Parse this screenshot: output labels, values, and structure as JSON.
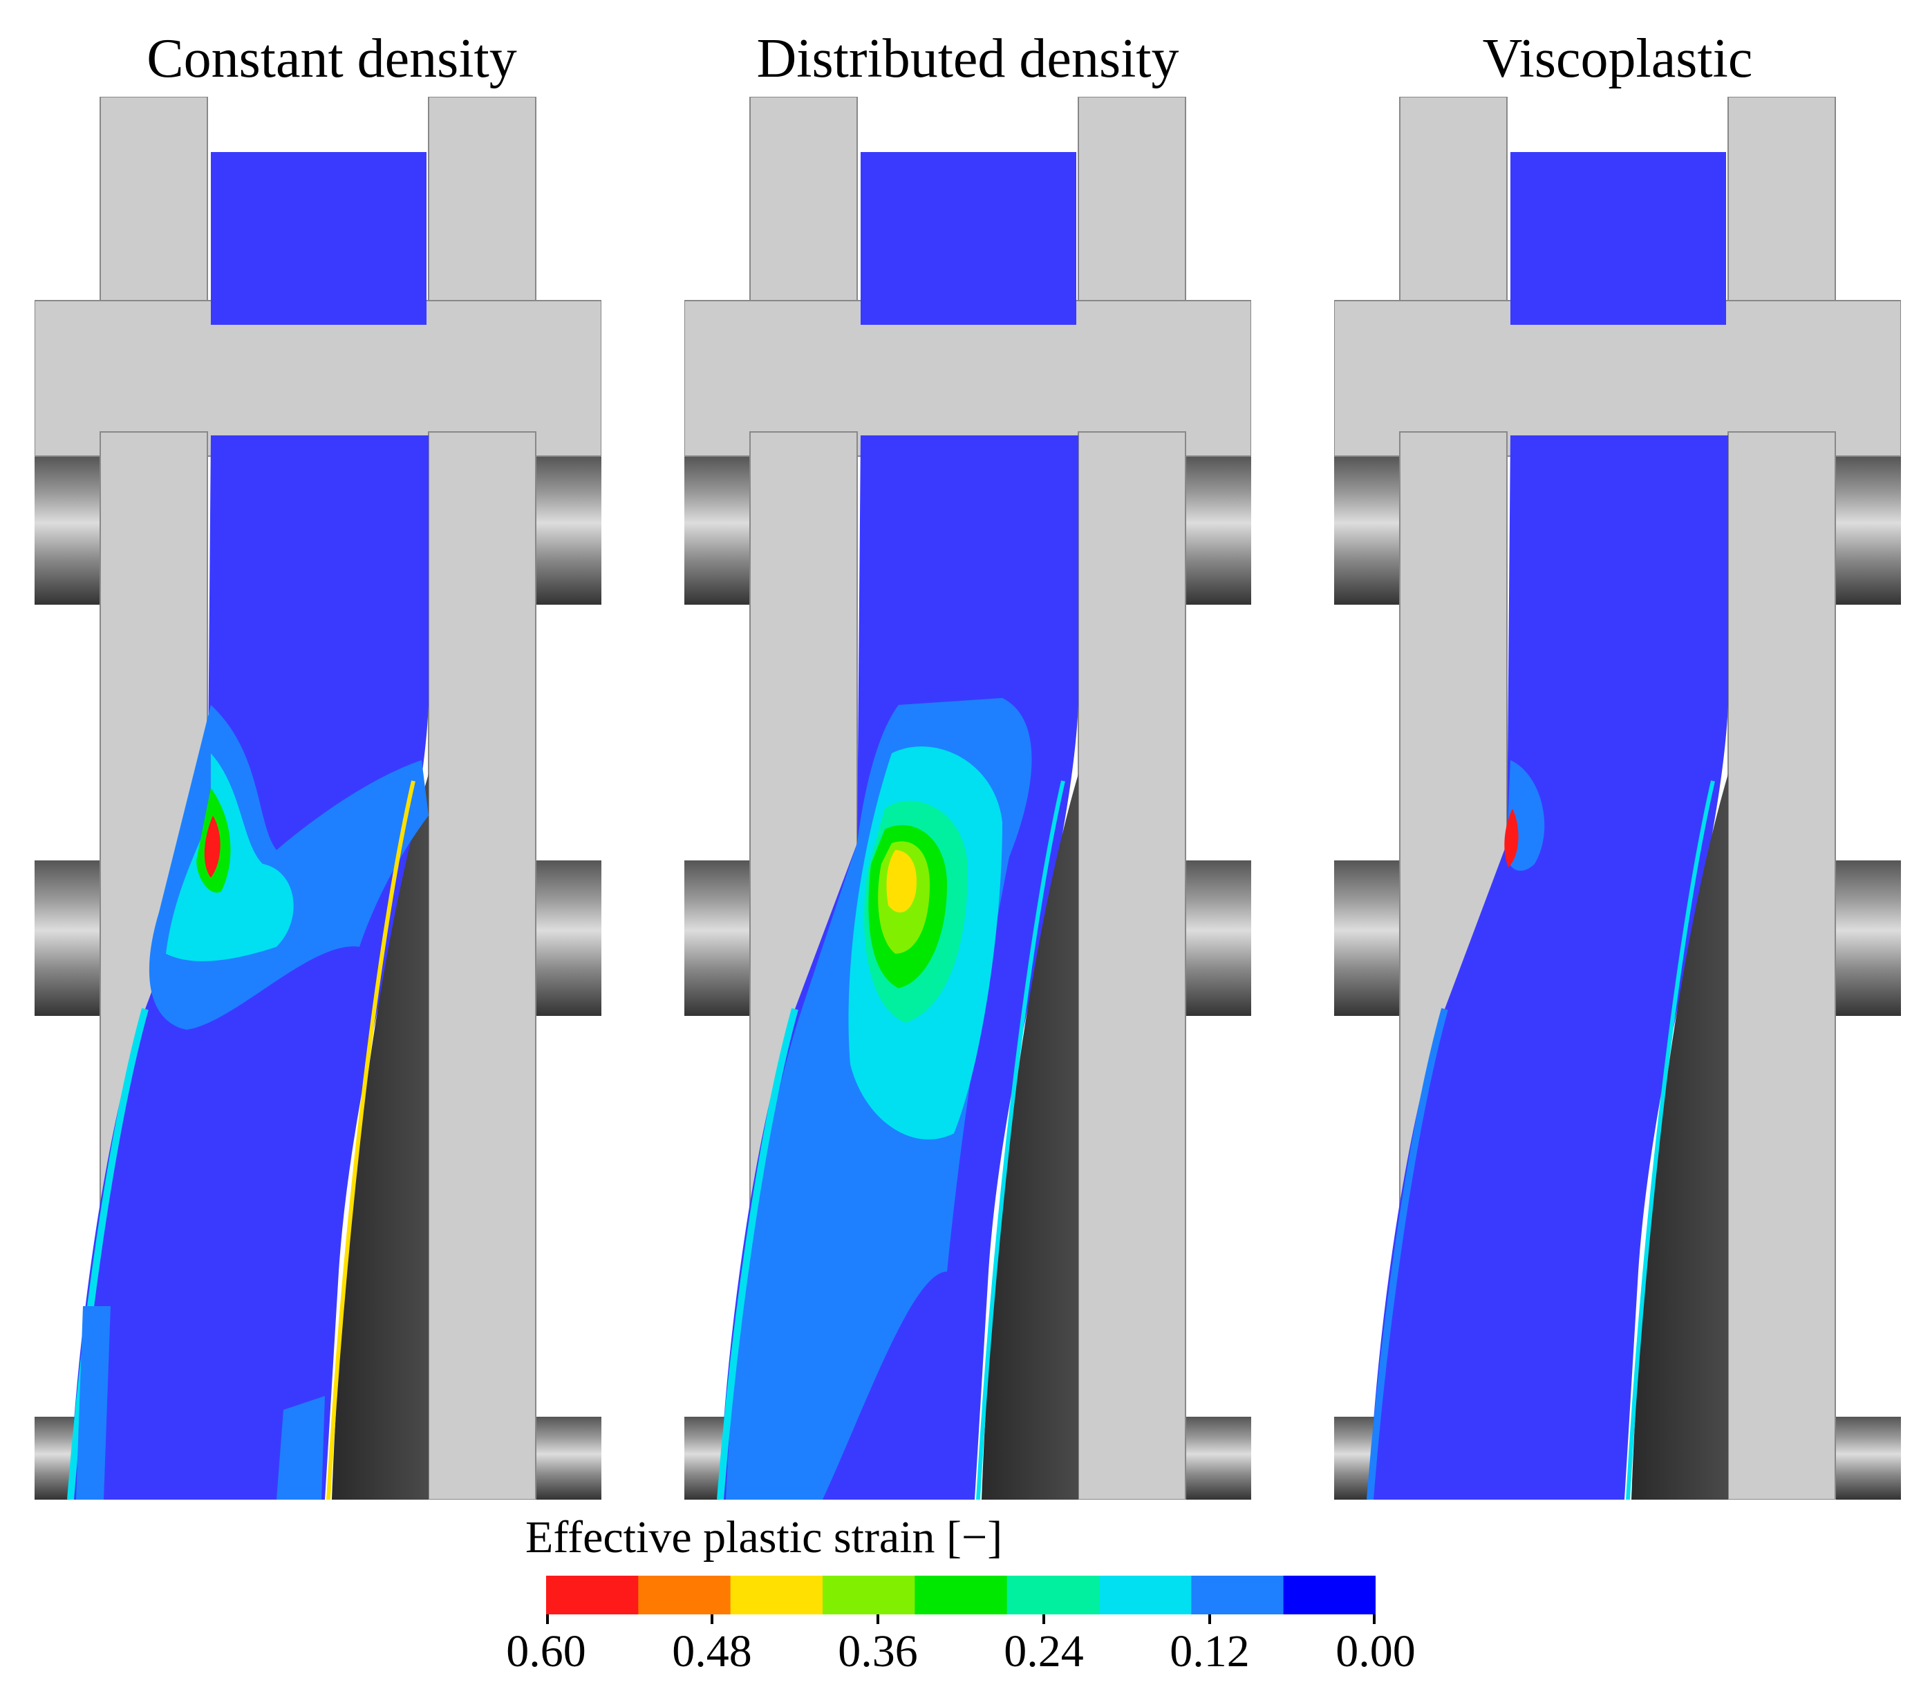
{
  "panels": [
    {
      "title": "Constant density"
    },
    {
      "title": "Distributed density"
    },
    {
      "title": "Viscoplastic"
    }
  ],
  "legend": {
    "title": "Effective plastic strain [−]",
    "ticks": [
      "0.60",
      "0.48",
      "0.36",
      "0.24",
      "0.12",
      "0.00"
    ],
    "bands": [
      "#ff1a1a",
      "#ff7a00",
      "#ffe000",
      "#80f000",
      "#00e800",
      "#00f0a0",
      "#00e0f0",
      "#1e80ff",
      "#0000ff"
    ]
  },
  "colors": {
    "tool": "#cccccc",
    "background_blue": "#3a3aff",
    "rolled_surface": "#3a3a3a"
  }
}
